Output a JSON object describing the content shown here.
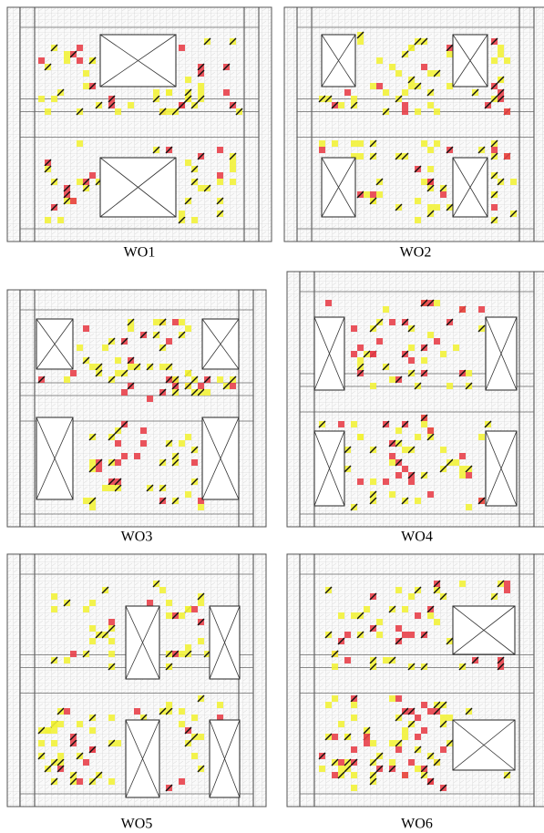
{
  "panels": [
    {
      "label": "WO1"
    },
    {
      "label": "WO2"
    },
    {
      "label": "WO3"
    },
    {
      "label": "WO4"
    },
    {
      "label": "WO5"
    },
    {
      "label": "WO6"
    }
  ]
}
